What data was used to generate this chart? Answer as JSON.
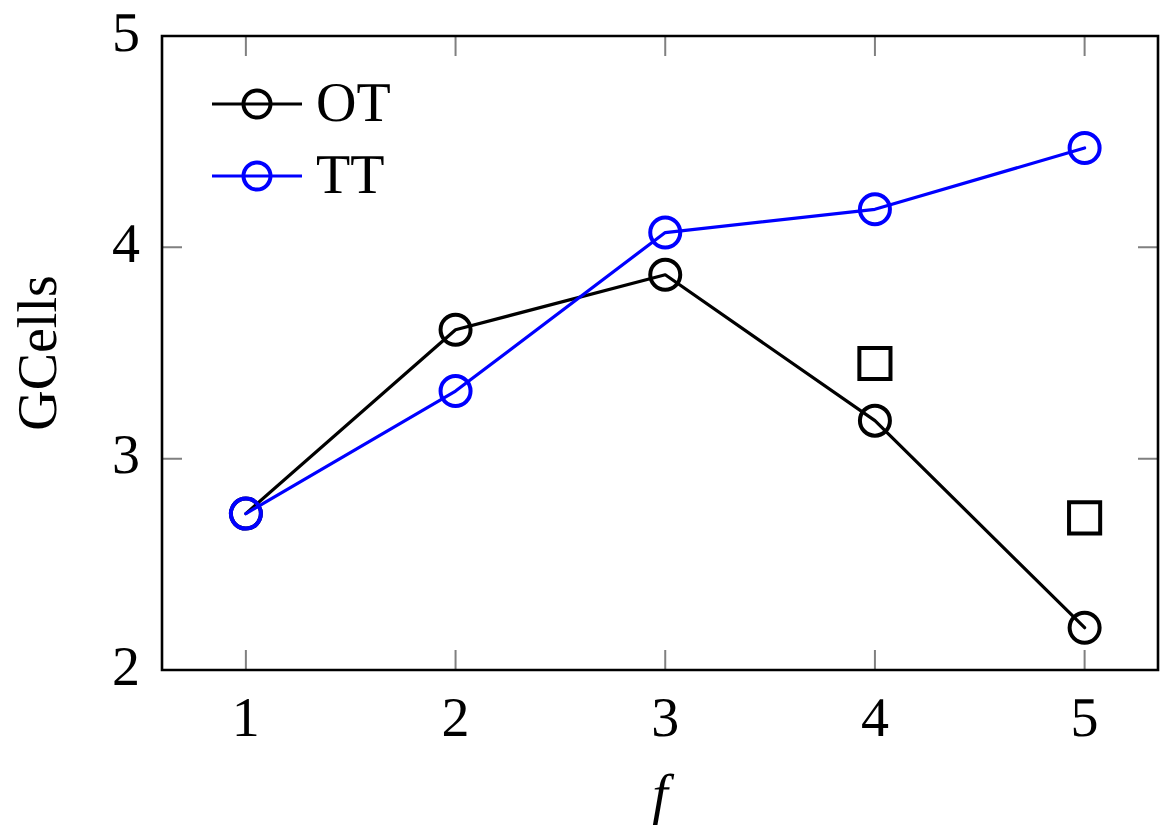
{
  "chart_data": {
    "type": "line",
    "xlabel": "f",
    "ylabel": "GCells",
    "x": [
      1,
      2,
      3,
      4,
      5
    ],
    "xlim": [
      0.6,
      5.35
    ],
    "ylim": [
      2,
      5
    ],
    "xticks": [
      1,
      2,
      3,
      4,
      5
    ],
    "yticks": [
      2,
      3,
      4,
      5
    ],
    "legend": "top left",
    "series": [
      {
        "name": "OT",
        "color": "#000000",
        "values": [
          2.74,
          3.61,
          3.87,
          3.18,
          2.2
        ],
        "marker": "circle"
      },
      {
        "name": "TT",
        "color": "#0000ff",
        "values": [
          2.74,
          3.32,
          4.07,
          4.18,
          4.47
        ],
        "marker": "circle"
      },
      {
        "type": "scatter",
        "color": "#000000",
        "x": [
          4,
          5
        ],
        "values": [
          3.45,
          2.72
        ],
        "marker": "square"
      }
    ]
  }
}
